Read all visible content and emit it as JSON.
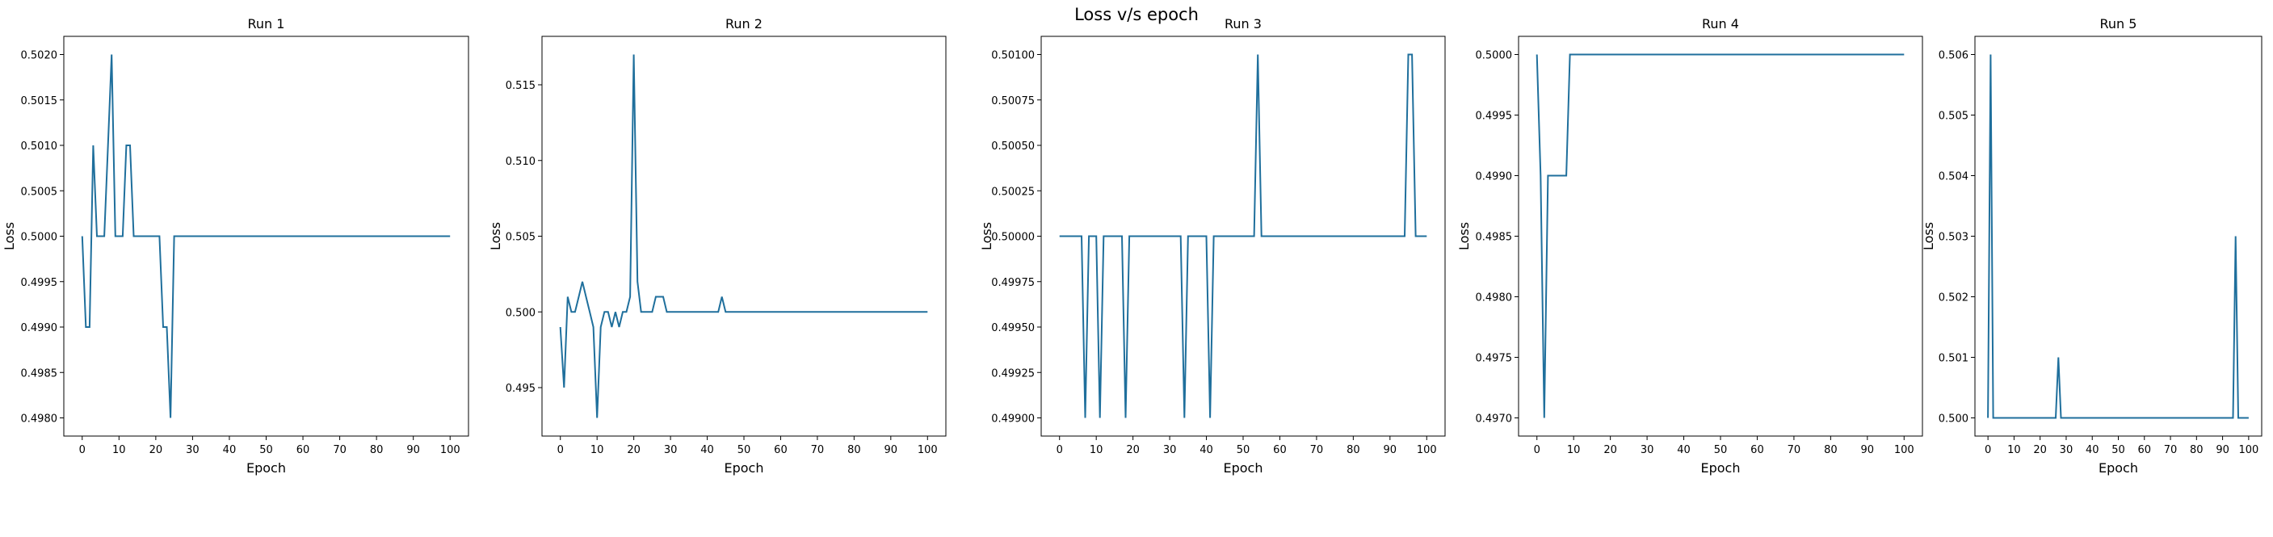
{
  "figure": {
    "title": "Loss v/s epoch"
  },
  "colors": {
    "line": "#1f6f9c",
    "axis": "#000000"
  },
  "chart_data": [
    {
      "type": "line",
      "title": "Run 1",
      "xlabel": "Epoch",
      "ylabel": "Loss",
      "xlim": [
        0,
        100
      ],
      "ylim": [
        0.498,
        0.502
      ],
      "xticks": [
        0,
        10,
        20,
        30,
        40,
        50,
        60,
        70,
        80,
        90,
        100
      ],
      "yticks": [
        0.498,
        0.4985,
        0.499,
        0.4995,
        0.5,
        0.5005,
        0.501,
        0.5015,
        0.502
      ],
      "ytick_labels": [
        "0.4980",
        "0.4985",
        "0.4990",
        "0.4995",
        "0.5000",
        "0.5005",
        "0.5010",
        "0.5015",
        "0.5020"
      ],
      "series": [
        {
          "x": [
            0,
            1,
            2,
            3,
            4,
            5,
            6,
            7,
            8,
            9,
            10,
            11,
            12,
            13,
            14,
            15,
            16,
            17,
            18,
            19,
            20,
            21,
            22,
            23,
            24,
            25,
            26,
            27,
            28,
            29,
            30,
            40,
            50,
            60,
            70,
            80,
            90,
            100
          ],
          "y": [
            0.5,
            0.499,
            0.499,
            0.501,
            0.5,
            0.5,
            0.5,
            0.501,
            0.502,
            0.5,
            0.5,
            0.5,
            0.501,
            0.501,
            0.5,
            0.5,
            0.5,
            0.5,
            0.5,
            0.5,
            0.5,
            0.5,
            0.499,
            0.499,
            0.498,
            0.5,
            0.5,
            0.5,
            0.5,
            0.5,
            0.5,
            0.5,
            0.5,
            0.5,
            0.5,
            0.5,
            0.5,
            0.5
          ]
        }
      ]
    },
    {
      "type": "line",
      "title": "Run 2",
      "xlabel": "Epoch",
      "ylabel": "Loss",
      "xlim": [
        0,
        100
      ],
      "ylim": [
        0.493,
        0.517
      ],
      "xticks": [
        0,
        10,
        20,
        30,
        40,
        50,
        60,
        70,
        80,
        90,
        100
      ],
      "yticks": [
        0.495,
        0.5,
        0.505,
        0.51,
        0.515
      ],
      "ytick_labels": [
        "0.495",
        "0.500",
        "0.505",
        "0.510",
        "0.515"
      ],
      "series": [
        {
          "x": [
            0,
            1,
            2,
            3,
            4,
            5,
            6,
            7,
            8,
            9,
            10,
            11,
            12,
            13,
            14,
            15,
            16,
            17,
            18,
            19,
            20,
            21,
            22,
            23,
            24,
            25,
            26,
            27,
            28,
            29,
            30,
            40,
            43,
            44,
            45,
            50,
            60,
            70,
            80,
            90,
            100
          ],
          "y": [
            0.499,
            0.495,
            0.501,
            0.5,
            0.5,
            0.501,
            0.502,
            0.501,
            0.5,
            0.499,
            0.493,
            0.499,
            0.5,
            0.5,
            0.499,
            0.5,
            0.499,
            0.5,
            0.5,
            0.501,
            0.517,
            0.502,
            0.5,
            0.5,
            0.5,
            0.5,
            0.501,
            0.501,
            0.501,
            0.5,
            0.5,
            0.5,
            0.5,
            0.501,
            0.5,
            0.5,
            0.5,
            0.5,
            0.5,
            0.5,
            0.5
          ]
        }
      ]
    },
    {
      "type": "line",
      "title": "Run 3",
      "xlabel": "Epoch",
      "ylabel": "Loss",
      "xlim": [
        0,
        100
      ],
      "ylim": [
        0.499,
        0.501
      ],
      "xticks": [
        0,
        10,
        20,
        30,
        40,
        50,
        60,
        70,
        80,
        90,
        100
      ],
      "yticks": [
        0.499,
        0.49925,
        0.4995,
        0.49975,
        0.5,
        0.50025,
        0.5005,
        0.50075,
        0.501
      ],
      "ytick_labels": [
        "0.49900",
        "0.49925",
        "0.49950",
        "0.49975",
        "0.50000",
        "0.50025",
        "0.50050",
        "0.50075",
        "0.50100"
      ],
      "series": [
        {
          "x": [
            0,
            5,
            6,
            7,
            8,
            9,
            10,
            11,
            12,
            17,
            18,
            19,
            20,
            33,
            34,
            35,
            40,
            41,
            42,
            53,
            54,
            55,
            56,
            60,
            70,
            80,
            90,
            94,
            95,
            96,
            97,
            98,
            100
          ],
          "y": [
            0.5,
            0.5,
            0.5,
            0.499,
            0.5,
            0.5,
            0.5,
            0.499,
            0.5,
            0.5,
            0.499,
            0.5,
            0.5,
            0.5,
            0.499,
            0.5,
            0.5,
            0.499,
            0.5,
            0.5,
            0.501,
            0.5,
            0.5,
            0.5,
            0.5,
            0.5,
            0.5,
            0.5,
            0.501,
            0.501,
            0.5,
            0.5,
            0.5
          ]
        }
      ]
    },
    {
      "type": "line",
      "title": "Run 4",
      "xlabel": "Epoch",
      "ylabel": "Loss",
      "xlim": [
        0,
        100
      ],
      "ylim": [
        0.497,
        0.5
      ],
      "xticks": [
        0,
        10,
        20,
        30,
        40,
        50,
        60,
        70,
        80,
        90,
        100
      ],
      "yticks": [
        0.497,
        0.4975,
        0.498,
        0.4985,
        0.499,
        0.4995,
        0.5
      ],
      "ytick_labels": [
        "0.4970",
        "0.4975",
        "0.4980",
        "0.4985",
        "0.4990",
        "0.4995",
        "0.5000"
      ],
      "series": [
        {
          "x": [
            0,
            1,
            2,
            3,
            4,
            5,
            6,
            7,
            8,
            9,
            10,
            20,
            30,
            40,
            50,
            60,
            70,
            80,
            90,
            100
          ],
          "y": [
            0.5,
            0.499,
            0.497,
            0.499,
            0.499,
            0.499,
            0.499,
            0.499,
            0.499,
            0.5,
            0.5,
            0.5,
            0.5,
            0.5,
            0.5,
            0.5,
            0.5,
            0.5,
            0.5,
            0.5
          ]
        }
      ]
    },
    {
      "type": "line",
      "title": "Run 5",
      "xlabel": "Epoch",
      "ylabel": "Loss",
      "xlim": [
        0,
        100
      ],
      "ylim": [
        0.5,
        0.506
      ],
      "xticks": [
        0,
        10,
        20,
        30,
        40,
        50,
        60,
        70,
        80,
        90,
        100
      ],
      "yticks": [
        0.5,
        0.501,
        0.502,
        0.503,
        0.504,
        0.505,
        0.506
      ],
      "ytick_labels": [
        "0.500",
        "0.501",
        "0.502",
        "0.503",
        "0.504",
        "0.505",
        "0.506"
      ],
      "series": [
        {
          "x": [
            0,
            1,
            2,
            3,
            10,
            20,
            26,
            27,
            28,
            30,
            40,
            50,
            60,
            70,
            80,
            90,
            94,
            95,
            96,
            97,
            98,
            100
          ],
          "y": [
            0.5,
            0.506,
            0.5,
            0.5,
            0.5,
            0.5,
            0.5,
            0.501,
            0.5,
            0.5,
            0.5,
            0.5,
            0.5,
            0.5,
            0.5,
            0.5,
            0.5,
            0.503,
            0.5,
            0.5,
            0.5,
            0.5
          ]
        }
      ]
    }
  ]
}
